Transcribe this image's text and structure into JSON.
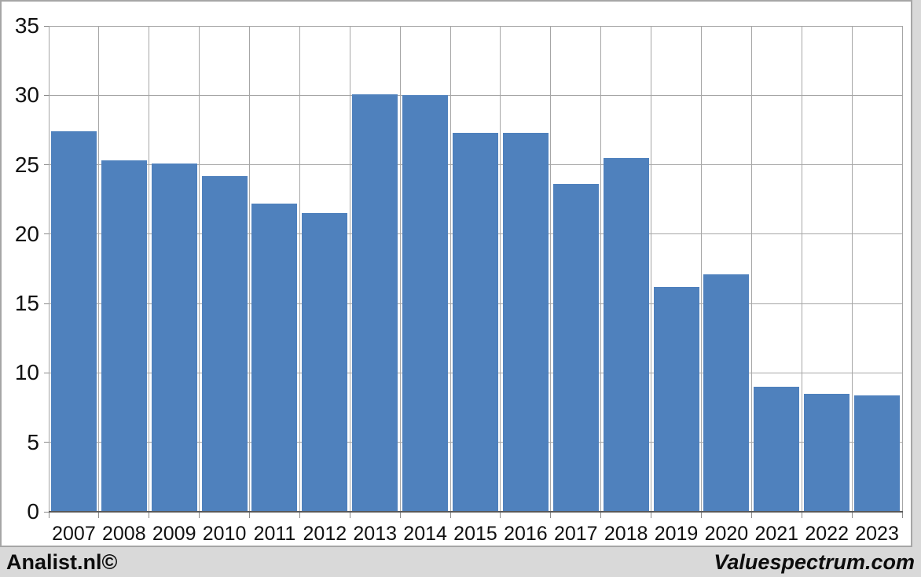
{
  "chart_data": {
    "type": "bar",
    "title": "",
    "xlabel": "",
    "ylabel": "",
    "categories": [
      "2007",
      "2008",
      "2009",
      "2010",
      "2011",
      "2012",
      "2013",
      "2014",
      "2015",
      "2016",
      "2017",
      "2018",
      "2019",
      "2020",
      "2021",
      "2022",
      "2023"
    ],
    "values": [
      27.4,
      25.3,
      25.1,
      24.2,
      22.2,
      21.5,
      30.1,
      30.0,
      27.3,
      27.3,
      23.6,
      25.5,
      16.2,
      17.1,
      9.0,
      8.5,
      8.4
    ],
    "ylim": [
      0,
      35
    ],
    "yticks": [
      0,
      5,
      10,
      15,
      20,
      25,
      30,
      35
    ],
    "grid": true,
    "legend_position": "none",
    "bar_color": "#4f81bd",
    "gridline_color": "#a6a6a6",
    "axis_line_color": "#595959",
    "plot_background": "#ffffff",
    "panel_border_color": "#a6a6a6",
    "page_background": "#d9d9d9"
  },
  "footer": {
    "left_brand": "Analist.nl©",
    "right_brand": "Valuespectrum.com"
  }
}
